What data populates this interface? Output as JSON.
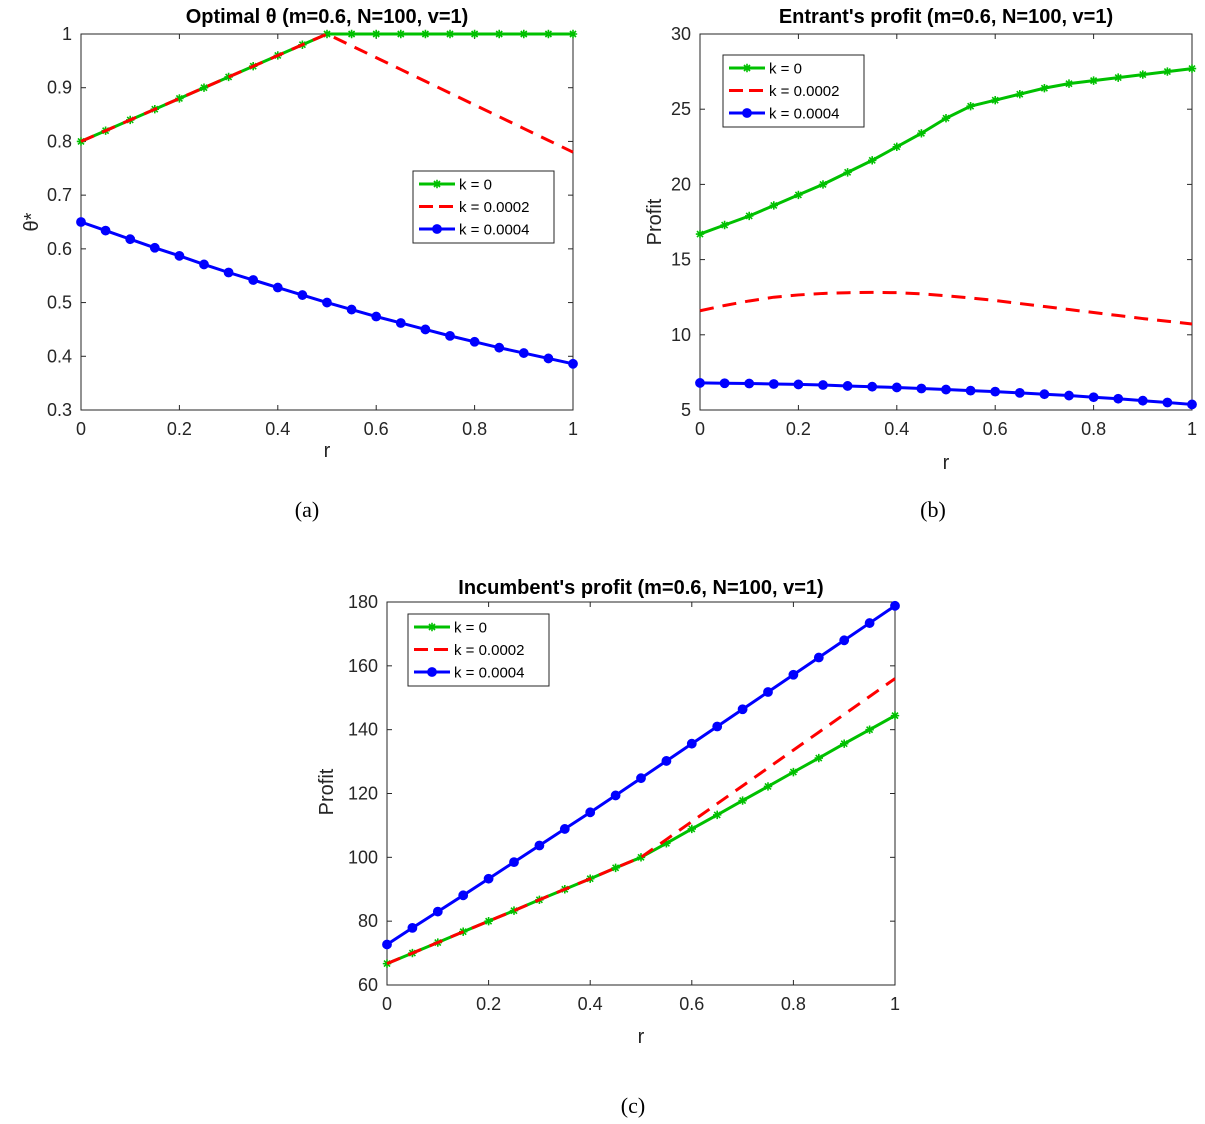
{
  "chart_data": [
    {
      "id": "a",
      "type": "line",
      "title": "Optimal θ (m=0.6, N=100, v=1)",
      "xlabel": "r",
      "ylabel": "θ*",
      "caption": "(a)",
      "xlim": [
        0,
        1
      ],
      "ylim": [
        0.3,
        1
      ],
      "xticks": [
        0,
        0.2,
        0.4,
        0.6,
        0.8,
        1
      ],
      "xtick_labels": [
        "0",
        "0.2",
        "0.4",
        "0.6",
        "0.8",
        "1"
      ],
      "yticks": [
        0.3,
        0.4,
        0.5,
        0.6,
        0.7,
        0.8,
        0.9,
        1
      ],
      "ytick_labels": [
        "0.3",
        "0.4",
        "0.5",
        "0.6",
        "0.7",
        "0.8",
        "0.9",
        "1"
      ],
      "grid": false,
      "legend_position": "right",
      "x": [
        0,
        0.05,
        0.1,
        0.15,
        0.2,
        0.25,
        0.3,
        0.35,
        0.4,
        0.45,
        0.5,
        0.55,
        0.6,
        0.65,
        0.7,
        0.75,
        0.8,
        0.85,
        0.9,
        0.95,
        1
      ],
      "series": [
        {
          "name": "k = 0",
          "color": "#00c000",
          "style": "solid",
          "marker": "star",
          "values": [
            0.8,
            0.82,
            0.84,
            0.86,
            0.88,
            0.9,
            0.92,
            0.94,
            0.96,
            0.98,
            1.0,
            1.0,
            1.0,
            1.0,
            1.0,
            1.0,
            1.0,
            1.0,
            1.0,
            1.0,
            1.0
          ]
        },
        {
          "name": "k = 0.0002",
          "color": "#ff0000",
          "style": "dashed",
          "marker": "none",
          "values": [
            0.8,
            0.82,
            0.84,
            0.86,
            0.88,
            0.9,
            0.92,
            0.94,
            0.96,
            0.98,
            1.0,
            0.978,
            0.956,
            0.934,
            0.912,
            0.89,
            0.868,
            0.846,
            0.824,
            0.802,
            0.78
          ]
        },
        {
          "name": "k = 0.0004",
          "color": "#0000ff",
          "style": "solid",
          "marker": "circle",
          "values": [
            0.65,
            0.634,
            0.618,
            0.602,
            0.587,
            0.571,
            0.556,
            0.542,
            0.528,
            0.514,
            0.5,
            0.487,
            0.474,
            0.462,
            0.45,
            0.438,
            0.427,
            0.416,
            0.406,
            0.396,
            0.386
          ]
        }
      ]
    },
    {
      "id": "b",
      "type": "line",
      "title": "Entrant's profit (m=0.6, N=100, v=1)",
      "xlabel": "r",
      "ylabel": "Profit",
      "caption": "(b)",
      "xlim": [
        0,
        1
      ],
      "ylim": [
        5,
        30
      ],
      "xticks": [
        0,
        0.2,
        0.4,
        0.6,
        0.8,
        1
      ],
      "xtick_labels": [
        "0",
        "0.2",
        "0.4",
        "0.6",
        "0.8",
        "1"
      ],
      "yticks": [
        5,
        10,
        15,
        20,
        25,
        30
      ],
      "ytick_labels": [
        "5",
        "10",
        "15",
        "20",
        "25",
        "30"
      ],
      "grid": false,
      "legend_position": "top-left",
      "x": [
        0,
        0.05,
        0.1,
        0.15,
        0.2,
        0.25,
        0.3,
        0.35,
        0.4,
        0.45,
        0.5,
        0.55,
        0.6,
        0.65,
        0.7,
        0.75,
        0.8,
        0.85,
        0.9,
        0.95,
        1
      ],
      "series": [
        {
          "name": "k = 0",
          "color": "#00c000",
          "style": "solid",
          "marker": "star",
          "values": [
            16.7,
            17.3,
            17.9,
            18.6,
            19.3,
            20.0,
            20.8,
            21.6,
            22.5,
            23.4,
            24.4,
            25.2,
            25.6,
            26.0,
            26.4,
            26.7,
            26.9,
            27.1,
            27.3,
            27.5,
            27.7
          ]
        },
        {
          "name": "k = 0.0002",
          "color": "#ff0000",
          "style": "dashed",
          "marker": "none",
          "values": [
            11.6,
            11.95,
            12.25,
            12.5,
            12.65,
            12.75,
            12.8,
            12.82,
            12.8,
            12.72,
            12.6,
            12.45,
            12.28,
            12.08,
            11.88,
            11.68,
            11.48,
            11.28,
            11.08,
            10.9,
            10.72
          ]
        },
        {
          "name": "k = 0.0004",
          "color": "#0000ff",
          "style": "solid",
          "marker": "circle",
          "values": [
            6.8,
            6.78,
            6.76,
            6.73,
            6.7,
            6.66,
            6.6,
            6.55,
            6.5,
            6.43,
            6.36,
            6.29,
            6.22,
            6.14,
            6.05,
            5.96,
            5.85,
            5.75,
            5.62,
            5.5,
            5.37
          ]
        }
      ]
    },
    {
      "id": "c",
      "type": "line",
      "title": "Incumbent's profit (m=0.6, N=100, v=1)",
      "xlabel": "r",
      "ylabel": "Profit",
      "caption": "(c)",
      "xlim": [
        0,
        1
      ],
      "ylim": [
        60,
        180
      ],
      "xticks": [
        0,
        0.2,
        0.4,
        0.6,
        0.8,
        1
      ],
      "xtick_labels": [
        "0",
        "0.2",
        "0.4",
        "0.6",
        "0.8",
        "1"
      ],
      "yticks": [
        60,
        80,
        100,
        120,
        140,
        160,
        180
      ],
      "ytick_labels": [
        "60",
        "80",
        "100",
        "120",
        "140",
        "160",
        "180"
      ],
      "grid": false,
      "legend_position": "top-left",
      "x": [
        0,
        0.05,
        0.1,
        0.15,
        0.2,
        0.25,
        0.3,
        0.35,
        0.4,
        0.45,
        0.5,
        0.55,
        0.6,
        0.65,
        0.7,
        0.75,
        0.8,
        0.85,
        0.9,
        0.95,
        1
      ],
      "series": [
        {
          "name": "k = 0",
          "color": "#00c000",
          "style": "solid",
          "marker": "star",
          "values": [
            66.7,
            70.0,
            73.3,
            76.7,
            80.0,
            83.3,
            86.7,
            90.0,
            93.3,
            96.7,
            100.0,
            104.4,
            108.9,
            113.3,
            117.8,
            122.2,
            126.7,
            131.1,
            135.6,
            140.0,
            144.4
          ]
        },
        {
          "name": "k = 0.0002",
          "color": "#ff0000",
          "style": "dashed",
          "marker": "none",
          "values": [
            66.7,
            70.0,
            73.3,
            76.7,
            80.0,
            83.3,
            86.7,
            90.0,
            93.3,
            96.7,
            100.0,
            105.6,
            111.2,
            116.8,
            122.4,
            128.0,
            133.6,
            139.2,
            144.8,
            150.4,
            156.0
          ]
        },
        {
          "name": "k = 0.0004",
          "color": "#0000ff",
          "style": "solid",
          "marker": "circle",
          "values": [
            72.7,
            77.9,
            83.0,
            88.1,
            93.3,
            98.5,
            103.7,
            108.9,
            114.1,
            119.4,
            124.8,
            130.2,
            135.6,
            141.0,
            146.4,
            151.8,
            157.2,
            162.6,
            168.0,
            173.4,
            178.8
          ]
        }
      ]
    }
  ]
}
